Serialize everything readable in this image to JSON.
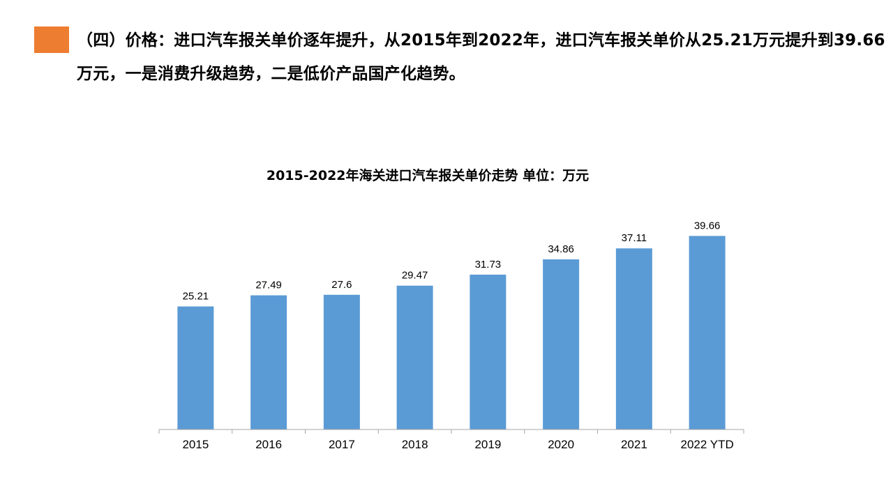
{
  "headline": "（四）价格：进口汽车报关单价逐年提升，从2015年到2022年，进口汽车报关单价从25.21万元提升到39.66万元，一是消费升级趋势，二是低价产品国产化趋势。",
  "colors": {
    "accent": "#ED7D31",
    "bar": "#5B9BD5",
    "axis": "#A6A6A6"
  },
  "chart_data": {
    "type": "bar",
    "title": "2015-2022年海关进口汽车报关单价走势  单位：万元",
    "categories": [
      "2015",
      "2016",
      "2017",
      "2018",
      "2019",
      "2020",
      "2021",
      "2022 YTD"
    ],
    "values": [
      25.21,
      27.49,
      27.6,
      29.47,
      31.73,
      34.86,
      37.11,
      39.66
    ],
    "data_labels": [
      "25.21",
      "27.49",
      "27.6",
      "29.47",
      "31.73",
      "34.86",
      "37.11",
      "39.66"
    ],
    "xlabel": "",
    "ylabel": "",
    "ylim": [
      0,
      45
    ],
    "grid": false,
    "legend": "none"
  }
}
